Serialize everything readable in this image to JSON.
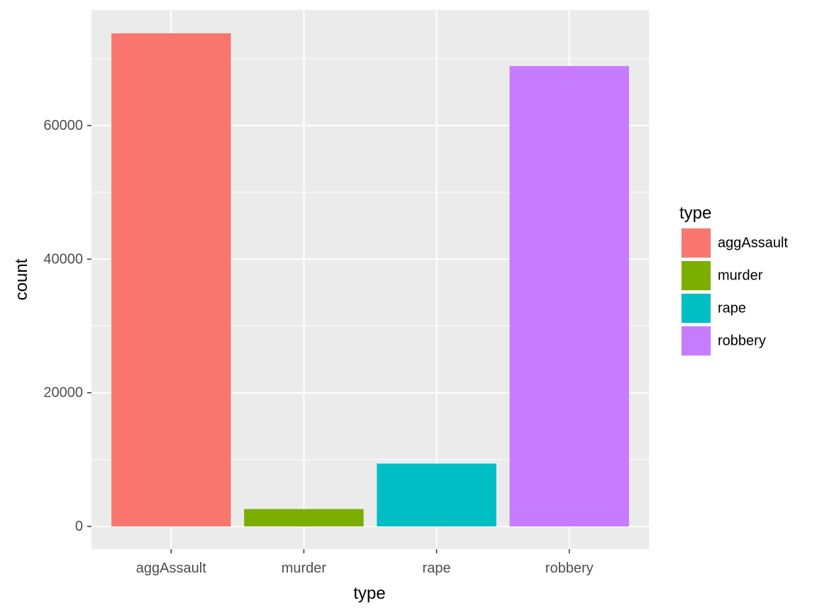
{
  "chart_data": {
    "type": "bar",
    "xlabel": "type",
    "ylabel": "count",
    "categories": [
      "aggAssault",
      "murder",
      "rape",
      "robbery"
    ],
    "values": [
      73800,
      2600,
      9400,
      68900
    ],
    "ylim": [
      -3400,
      77300
    ],
    "yticks": [
      0,
      20000,
      40000,
      60000
    ],
    "ytick_labels": [
      "0",
      "20000",
      "40000",
      "60000"
    ],
    "grid": true,
    "legend": {
      "title": "type",
      "placement": "right",
      "entries": [
        "aggAssault",
        "murder",
        "rape",
        "robbery"
      ]
    },
    "colors": [
      "#F8766D",
      "#7CAE00",
      "#00BFC4",
      "#C77CFF"
    ],
    "panel_background": "#EBEBEB",
    "grid_color": "#FFFFFF"
  }
}
